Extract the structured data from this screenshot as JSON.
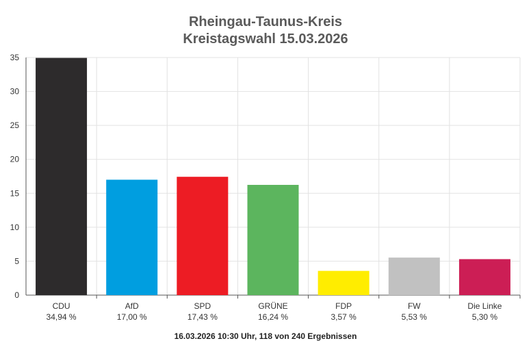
{
  "chart_data": {
    "type": "bar",
    "title": "Rheingau-Taunus-Kreis",
    "subtitle": "Kreistagswahl 15.03.2026",
    "categories": [
      "CDU",
      "AfD",
      "SPD",
      "GRÜNE",
      "FDP",
      "FW",
      "Die Linke"
    ],
    "values": [
      34.94,
      17.0,
      17.43,
      16.24,
      3.57,
      5.53,
      5.3
    ],
    "value_labels": [
      "34,94 %",
      "17,00 %",
      "17,43 %",
      "16,24 %",
      "3,57 %",
      "5,53 %",
      "5,30 %"
    ],
    "colors": [
      "#2d2b2c",
      "#009ee0",
      "#ed1c24",
      "#5cb55e",
      "#ffed00",
      "#c1c1c1",
      "#cc1e55"
    ],
    "ylim": [
      0,
      35
    ],
    "yticks": [
      "0",
      "5",
      "10",
      "15",
      "20",
      "25",
      "30",
      "35"
    ],
    "grid": true,
    "xlabel": "",
    "ylabel": ""
  },
  "footer": "16.03.2026 10:30 Uhr, 118 von 240 Ergebnissen"
}
